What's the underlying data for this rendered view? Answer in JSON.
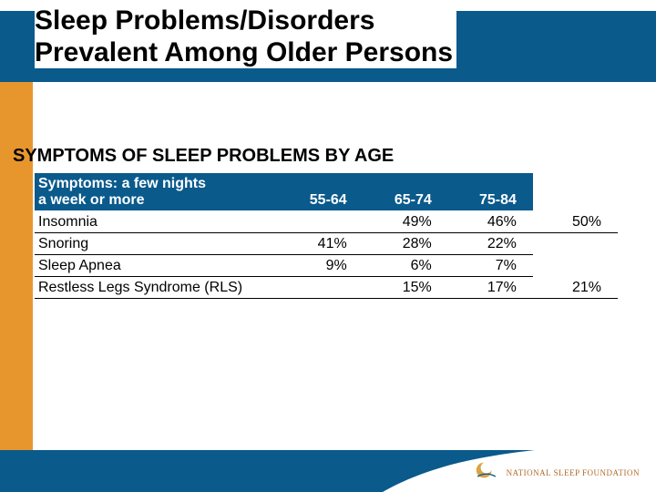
{
  "colors": {
    "band_blue": "#0a5a8c",
    "orange": "#e7962e",
    "white": "#ffffff",
    "black": "#000000",
    "logo_text": "#b06a2a",
    "logo_gold": "#d9a441"
  },
  "title": {
    "line1": "Sleep Problems/Disorders",
    "line2": "Prevalent Among Older Persons",
    "fontsize": 30
  },
  "subhead": "SYMPTOMS OF SLEEP PROBLEMS BY AGE",
  "table": {
    "header": {
      "label_line1": "Symptoms: a few nights",
      "label_line2": "a week or more",
      "cols": [
        "55-64",
        "65-74",
        "75-84"
      ],
      "extra_col": ""
    },
    "rows": [
      {
        "label": "Insomnia",
        "vals": [
          "",
          "49%",
          "46%"
        ],
        "extra": "50%",
        "bold": true
      },
      {
        "label": "Snoring",
        "vals": [
          "41%",
          "28%",
          "22%"
        ],
        "extra": "",
        "bold": false
      },
      {
        "label": "Sleep Apnea",
        "vals": [
          "9%",
          "6%",
          "7%"
        ],
        "extra": "",
        "bold": false
      },
      {
        "label": "Restless Legs Syndrome (RLS)",
        "vals": [
          "15%",
          "",
          "17%"
        ],
        "extra": "21%",
        "bold": true,
        "merge_first_two": true
      }
    ],
    "col_widths": [
      "230px",
      "80px",
      "80px",
      "80px",
      "80px"
    ]
  },
  "footer": {
    "brand": "NATIONAL SLEEP FOUNDATION"
  }
}
